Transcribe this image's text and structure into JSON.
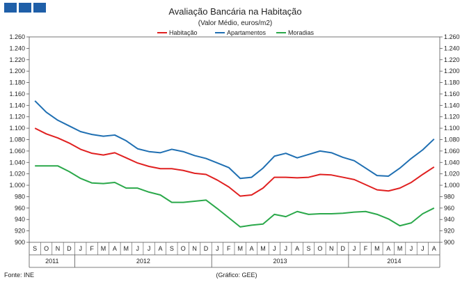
{
  "header": {
    "logo_icon": "gee-logo-icon"
  },
  "chart_data": {
    "type": "line",
    "title": "Avaliação Bancária na Habitação",
    "subtitle": "(Valor Médio, euros/m2)",
    "ylim": [
      900,
      1260
    ],
    "y_ticks": [
      "900",
      "920",
      "940",
      "960",
      "980",
      "1.000",
      "1.020",
      "1.040",
      "1.060",
      "1.080",
      "1.100",
      "1.120",
      "1.140",
      "1.160",
      "1.180",
      "1.200",
      "1.220",
      "1.240",
      "1.260"
    ],
    "y_tick_values": [
      900,
      920,
      940,
      960,
      980,
      1000,
      1020,
      1040,
      1060,
      1080,
      1100,
      1120,
      1140,
      1160,
      1180,
      1200,
      1220,
      1240,
      1260
    ],
    "categories": [
      "S",
      "O",
      "N",
      "D",
      "J",
      "F",
      "M",
      "A",
      "M",
      "J",
      "J",
      "A",
      "S",
      "O",
      "N",
      "D",
      "J",
      "F",
      "M",
      "A",
      "M",
      "J",
      "J",
      "A",
      "S",
      "O",
      "N",
      "D",
      "J",
      "F",
      "M",
      "A",
      "M",
      "J",
      "J",
      "A"
    ],
    "years": [
      {
        "label": "2011",
        "start": 0,
        "end": 3
      },
      {
        "label": "2012",
        "start": 4,
        "end": 15
      },
      {
        "label": "2013",
        "start": 16,
        "end": 27
      },
      {
        "label": "2014",
        "start": 28,
        "end": 35
      }
    ],
    "series": [
      {
        "name": "Habitação",
        "color": "#e02020",
        "values": [
          1100,
          1090,
          1083,
          1074,
          1063,
          1056,
          1053,
          1057,
          1048,
          1039,
          1033,
          1029,
          1029,
          1026,
          1021,
          1019,
          1009,
          997,
          981,
          983,
          995,
          1014,
          1014,
          1013,
          1014,
          1019,
          1018,
          1014,
          1010,
          1001,
          992,
          990,
          995,
          1005,
          1019,
          1032
        ]
      },
      {
        "name": "Apartamentos",
        "color": "#1f6fb2",
        "values": [
          1148,
          1128,
          1114,
          1104,
          1094,
          1089,
          1086,
          1088,
          1078,
          1064,
          1059,
          1057,
          1063,
          1059,
          1052,
          1047,
          1039,
          1031,
          1012,
          1014,
          1030,
          1051,
          1056,
          1048,
          1054,
          1060,
          1057,
          1049,
          1043,
          1030,
          1017,
          1016,
          1030,
          1047,
          1062,
          1081
        ]
      },
      {
        "name": "Moradias",
        "color": "#2aa84a",
        "values": [
          1034,
          1034,
          1034,
          1024,
          1012,
          1004,
          1003,
          1005,
          995,
          995,
          988,
          983,
          970,
          970,
          972,
          974,
          959,
          943,
          927,
          930,
          932,
          949,
          945,
          954,
          949,
          950,
          950,
          951,
          953,
          954,
          949,
          941,
          929,
          934,
          950,
          960
        ]
      }
    ],
    "source": "Fonte: INE",
    "credit": "(Gráfico: GEE)"
  }
}
